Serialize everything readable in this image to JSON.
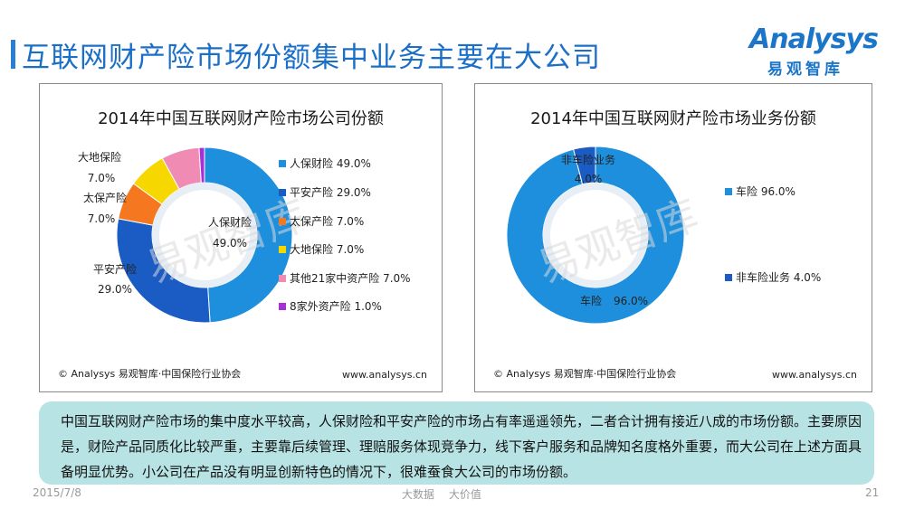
{
  "page": {
    "title": "互联网财产险市场份额集中业务主要在大公司",
    "summary": "中国互联网财产险市场的集中度水平较高，人保财险和平安产险的市场占有率遥遥领先，二者合计拥有接近八成的市场份额。主要原因是，财险产品同质化比较严重，主要靠后续管理、理赔服务体现竞争力，线下客户服务和品牌知名度格外重要，而大公司在上述方面具备明显优势。小公司在产品没有明显创新特色的情况下，很难蚕食大公司的市场份额。",
    "footer": {
      "date": "2015/7/8",
      "center_left": "大数据",
      "center_right": "大价值",
      "page_number": "21"
    }
  },
  "logo": {
    "word": "Analysys",
    "sub": "易观智库"
  },
  "watermark": {
    "text": "易观智库"
  },
  "colors": {
    "title_blue": "#1c6fc6",
    "summary_bg": "#b8e3e4"
  },
  "chart_data": [
    {
      "type": "pie",
      "donut": true,
      "title": "2014年中国互联网财产险市场公司份额",
      "series": [
        {
          "name": "人保财险",
          "value": 49.0,
          "label": "49.0%",
          "color": "#1e8fdd"
        },
        {
          "name": "平安产险",
          "value": 29.0,
          "label": "29.0%",
          "color": "#1a5cc4"
        },
        {
          "name": "太保产险",
          "value": 7.0,
          "label": "7.0%",
          "color": "#f5771f"
        },
        {
          "name": "大地保险",
          "value": 7.0,
          "label": "7.0%",
          "color": "#f7d700"
        },
        {
          "name": "其他21家中资产险",
          "value": 7.0,
          "label": "7.0%",
          "color": "#f08cb4"
        },
        {
          "name": "8家外资产险",
          "value": 1.0,
          "label": "1.0%",
          "color": "#a72fd8"
        }
      ],
      "legend_position": "right",
      "source": "© Analysys 易观智库·中国保险行业协会",
      "site": "www.analysys.cn"
    },
    {
      "type": "pie",
      "donut": true,
      "title": "2014年中国互联网财产险市场业务份额",
      "series": [
        {
          "name": "车险",
          "value": 96.0,
          "label": "96.0%",
          "color": "#1e8fdd"
        },
        {
          "name": "非车险业务",
          "value": 4.0,
          "label": "4.0%",
          "color": "#1a5cc4"
        }
      ],
      "legend_position": "right",
      "source": "© Analysys 易观智库·中国保险行业协会",
      "site": "www.analysys.cn"
    }
  ]
}
